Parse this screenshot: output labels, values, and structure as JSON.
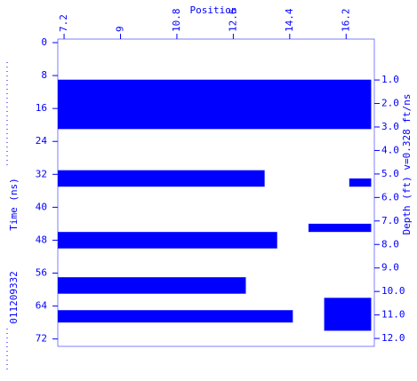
{
  "chart_data": {
    "type": "radargram",
    "title": "Position",
    "y_label": "Time (ns)",
    "y2_label": "Depth (ft) v=0.328 ft/ns",
    "file_label": "011209332",
    "color": "#0000ff",
    "xlim": [
      7.0,
      17.1
    ],
    "xticks": [
      7.2,
      9,
      10.8,
      12.6,
      14.4,
      16.2
    ],
    "ylim": [
      0,
      72.5
    ],
    "yticks": [
      0,
      8,
      16,
      24,
      32,
      40,
      48,
      56,
      64,
      72
    ],
    "y2lim": [
      -0.59,
      12.11
    ],
    "y2ticks": [
      {
        "value": 1,
        "label": "1.0"
      },
      {
        "value": 2,
        "label": "2.0"
      },
      {
        "value": 3,
        "label": "3.0"
      },
      {
        "value": 4,
        "label": "4.0"
      },
      {
        "value": 5,
        "label": "5.0"
      },
      {
        "value": 6,
        "label": "6.0"
      },
      {
        "value": 7,
        "label": "7.0"
      },
      {
        "value": 8,
        "label": "8.0"
      },
      {
        "value": 9,
        "label": "9.0"
      },
      {
        "value": 10,
        "label": "10.0"
      },
      {
        "value": 11,
        "label": "11.0"
      },
      {
        "value": 12,
        "label": "12.0"
      }
    ],
    "reflections": [
      {
        "x": [
          7.0,
          17.0
        ],
        "y": [
          9,
          21
        ]
      },
      {
        "x": [
          7.0,
          13.6
        ],
        "y": [
          31,
          35
        ]
      },
      {
        "x": [
          16.3,
          17.0
        ],
        "y": [
          33,
          35
        ]
      },
      {
        "x": [
          7.0,
          14.0
        ],
        "y": [
          46,
          50
        ]
      },
      {
        "x": [
          15.0,
          17.0
        ],
        "y": [
          44,
          46
        ]
      },
      {
        "x": [
          7.0,
          13.0
        ],
        "y": [
          57,
          61
        ]
      },
      {
        "x": [
          7.0,
          14.5
        ],
        "y": [
          65,
          68
        ]
      },
      {
        "x": [
          15.5,
          17.0
        ],
        "y": [
          62,
          70
        ]
      }
    ]
  }
}
